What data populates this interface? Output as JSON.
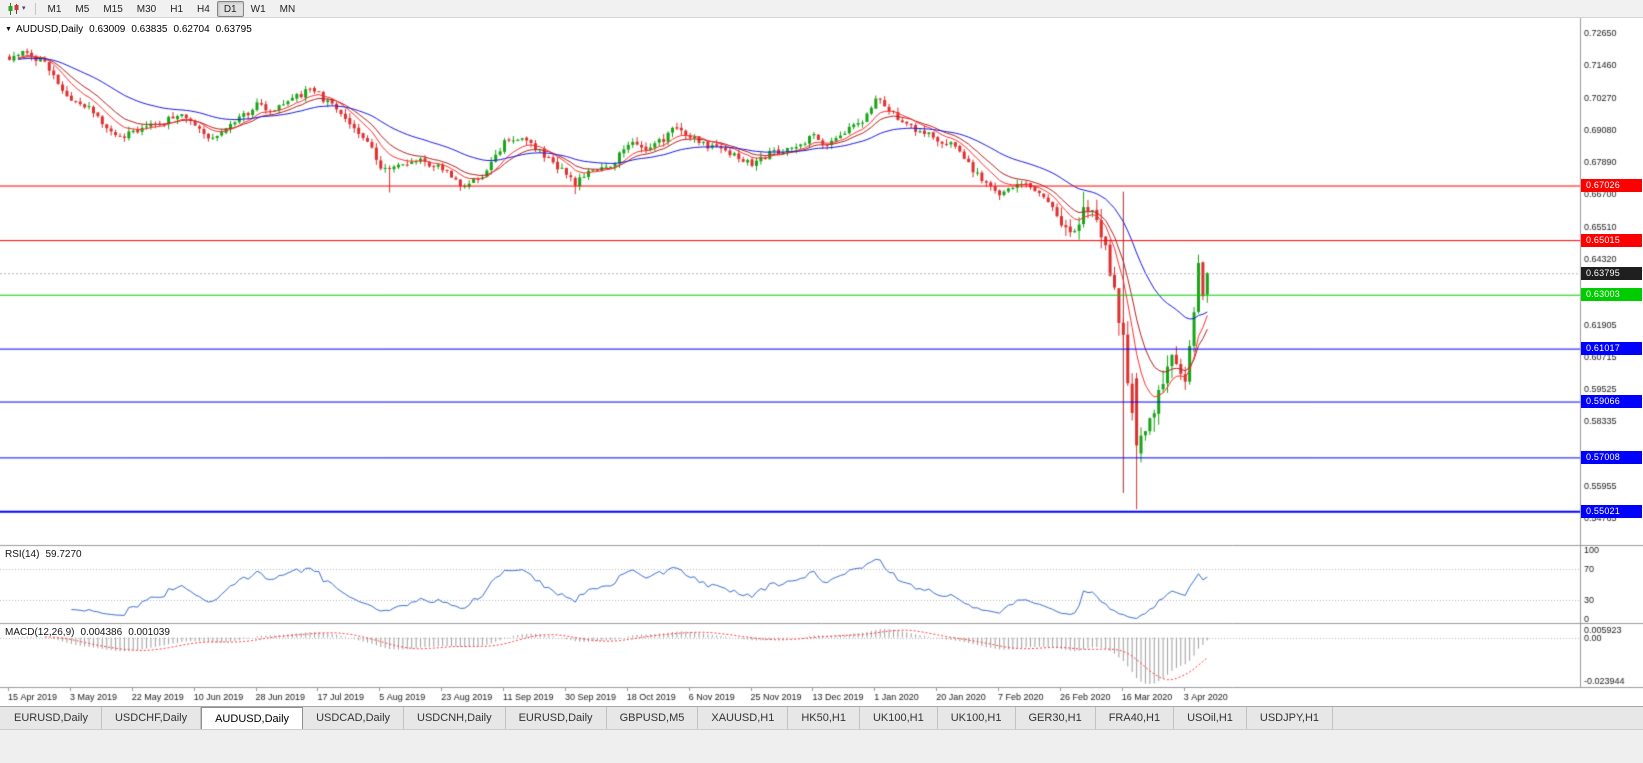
{
  "toolbar": {
    "chart_type_icon": "candlestick-chart-icon",
    "timeframes": [
      {
        "label": "M1",
        "active": false
      },
      {
        "label": "M5",
        "active": false
      },
      {
        "label": "M15",
        "active": false
      },
      {
        "label": "M30",
        "active": false
      },
      {
        "label": "H1",
        "active": false
      },
      {
        "label": "H4",
        "active": false
      },
      {
        "label": "D1",
        "active": true
      },
      {
        "label": "W1",
        "active": false
      },
      {
        "label": "MN",
        "active": false
      }
    ]
  },
  "header": {
    "symbol": "AUDUSD,Daily",
    "open": "0.63009",
    "high": "0.63835",
    "low": "0.62704",
    "close": "0.63795"
  },
  "tabs": [
    {
      "label": "EURUSD,Daily",
      "active": false
    },
    {
      "label": "USDCHF,Daily",
      "active": false
    },
    {
      "label": "AUDUSD,Daily",
      "active": true
    },
    {
      "label": "USDCAD,Daily",
      "active": false
    },
    {
      "label": "USDCNH,Daily",
      "active": false
    },
    {
      "label": "EURUSD,Daily",
      "active": false
    },
    {
      "label": "GBPUSD,M5",
      "active": false
    },
    {
      "label": "XAUUSD,H1",
      "active": false
    },
    {
      "label": "HK50,H1",
      "active": false
    },
    {
      "label": "UK100,H1",
      "active": false
    },
    {
      "label": "UK100,H1",
      "active": false
    },
    {
      "label": "GER30,H1",
      "active": false
    },
    {
      "label": "FRA40,H1",
      "active": false
    },
    {
      "label": "USOil,H1",
      "active": false
    },
    {
      "label": "USDJPY,H1",
      "active": false
    }
  ],
  "chart_data": {
    "type": "candlestick",
    "symbol": "AUDUSD",
    "timeframe": "Daily",
    "num_candles": 272,
    "colors": {
      "up": "#18a418",
      "down": "#dd3030",
      "ma_blue": "#1a1ae0",
      "ma_red_fast": "#ff3030",
      "ma_red_slow": "#b22222",
      "rsi_line": "#3c6fd0",
      "macd_bars": "#9e9e9e",
      "macd_signal": "#ff4040",
      "bid_line": "#b8b8b8"
    },
    "price_axis": {
      "y_top_price": 0.732,
      "y_bottom_price": 0.5378,
      "ticks": [
        "0.72650",
        "0.71460",
        "0.70270",
        "0.69080",
        "0.67890",
        "0.66700",
        "0.65510",
        "0.64320",
        "0.61905",
        "0.60715",
        "0.59525",
        "0.58335",
        "0.57145",
        "0.55955",
        "0.54765"
      ]
    },
    "date_axis": {
      "candles_per_label": 14,
      "labels": [
        "15 Apr 2019",
        "3 May 2019",
        "22 May 2019",
        "10 Jun 2019",
        "28 Jun 2019",
        "17 Jul 2019",
        "5 Aug 2019",
        "23 Aug 2019",
        "11 Sep 2019",
        "30 Sep 2019",
        "18 Oct 2019",
        "6 Nov 2019",
        "25 Nov 2019",
        "13 Dec 2019",
        "1 Jan 2020",
        "20 Jan 2020",
        "7 Feb 2020",
        "26 Feb 2020",
        "16 Mar 2020",
        "3 Apr 2020"
      ]
    },
    "path_anchors": [
      [
        0,
        0.7175
      ],
      [
        4,
        0.7192
      ],
      [
        8,
        0.715
      ],
      [
        14,
        0.7005
      ],
      [
        18,
        0.6992
      ],
      [
        24,
        0.688
      ],
      [
        28,
        0.6898
      ],
      [
        33,
        0.6925
      ],
      [
        38,
        0.6962
      ],
      [
        42,
        0.6935
      ],
      [
        46,
        0.6872
      ],
      [
        50,
        0.692
      ],
      [
        56,
        0.7
      ],
      [
        60,
        0.6978
      ],
      [
        64,
        0.7028
      ],
      [
        68,
        0.7052
      ],
      [
        70,
        0.7038
      ],
      [
        74,
        0.6978
      ],
      [
        78,
        0.6905
      ],
      [
        82,
        0.6848
      ],
      [
        84,
        0.6762
      ],
      [
        86,
        0.6758
      ],
      [
        90,
        0.6788
      ],
      [
        94,
        0.6792
      ],
      [
        98,
        0.6762
      ],
      [
        101,
        0.6722
      ],
      [
        103,
        0.6692
      ],
      [
        107,
        0.6742
      ],
      [
        112,
        0.6862
      ],
      [
        116,
        0.6882
      ],
      [
        120,
        0.6832
      ],
      [
        124,
        0.6772
      ],
      [
        126,
        0.6752
      ],
      [
        128,
        0.6708
      ],
      [
        132,
        0.6762
      ],
      [
        136,
        0.6772
      ],
      [
        140,
        0.686
      ],
      [
        144,
        0.6842
      ],
      [
        148,
        0.6872
      ],
      [
        151,
        0.692
      ],
      [
        154,
        0.6882
      ],
      [
        158,
        0.6848
      ],
      [
        162,
        0.6832
      ],
      [
        166,
        0.6792
      ],
      [
        168,
        0.6778
      ],
      [
        172,
        0.682
      ],
      [
        176,
        0.6836
      ],
      [
        180,
        0.6862
      ],
      [
        182,
        0.6886
      ],
      [
        185,
        0.6856
      ],
      [
        189,
        0.6902
      ],
      [
        193,
        0.6946
      ],
      [
        196,
        0.702
      ],
      [
        199,
        0.6986
      ],
      [
        203,
        0.6922
      ],
      [
        207,
        0.6902
      ],
      [
        210,
        0.6872
      ],
      [
        214,
        0.6846
      ],
      [
        218,
        0.6762
      ],
      [
        221,
        0.6702
      ],
      [
        224,
        0.6672
      ],
      [
        228,
        0.6716
      ],
      [
        232,
        0.6692
      ],
      [
        236,
        0.6622
      ],
      [
        238,
        0.6562
      ],
      [
        241,
        0.6532
      ],
      [
        243,
        0.6612
      ],
      [
        246,
        0.6582
      ],
      [
        248,
        0.6452
      ],
      [
        250,
        0.6302
      ],
      [
        252,
        0.6122
      ],
      [
        253,
        0.6002
      ],
      [
        255,
        0.5745
      ],
      [
        257,
        0.5802
      ],
      [
        259,
        0.5882
      ],
      [
        261,
        0.5962
      ],
      [
        263,
        0.6072
      ],
      [
        265,
        0.6002
      ],
      [
        266,
        0.5992
      ],
      [
        267,
        0.6102
      ],
      [
        268,
        0.6232
      ],
      [
        269,
        0.642
      ],
      [
        270,
        0.6302
      ],
      [
        271,
        0.63795
      ]
    ],
    "candle_overrides": {
      "86": {
        "l": 0.6677
      },
      "128": {
        "l": 0.6671
      },
      "243": {
        "h": 0.668
      },
      "255": {
        "o": 0.5992,
        "h": 0.6012,
        "l": 0.551,
        "c": 0.5745
      },
      "269": {
        "h": 0.6448
      },
      "271": {
        "o": 0.63009,
        "h": 0.63835,
        "l": 0.62704,
        "c": 0.63795
      }
    },
    "volatility_windows": [
      {
        "from": 238,
        "to": 245,
        "mult": 1.7
      },
      {
        "from": 246,
        "to": 263,
        "mult": 3.0
      },
      {
        "from": 264,
        "to": 268,
        "mult": 1.7
      }
    ],
    "horizontal_lines": [
      {
        "price": 0.67026,
        "label": "0.67026",
        "color": "#ff0000",
        "width": 1
      },
      {
        "price": 0.65015,
        "label": "0.65015",
        "color": "#ff0000",
        "width": 1
      },
      {
        "price": 0.63003,
        "label": "0.63003",
        "color": "#00cc00",
        "width": 1
      },
      {
        "price": 0.61017,
        "label": "0.61017",
        "color": "#0000ff",
        "width": 1
      },
      {
        "price": 0.59066,
        "label": "0.59066",
        "color": "#0000ff",
        "width": 1
      },
      {
        "price": 0.57008,
        "label": "0.57008",
        "color": "#0000ff",
        "width": 1
      },
      {
        "price": 0.55021,
        "label": "0.55021",
        "color": "#0000ff",
        "width": 2
      }
    ],
    "current_price": {
      "value": "0.63795",
      "price": 0.63795,
      "flag_color": "#1f1f1f"
    },
    "annotations": [
      {
        "type": "vline_segment",
        "index": 252,
        "from": 0.668,
        "to": 0.557,
        "color": "#a03030"
      }
    ],
    "moving_averages": [
      {
        "period": 13,
        "type": "ema",
        "color": "#b22222",
        "width": 1
      },
      {
        "period": 8,
        "type": "ema",
        "color": "#ff3030",
        "width": 1
      },
      {
        "period": 34,
        "type": "ema",
        "color": "#1a1ae0",
        "width": 1
      }
    ],
    "indicators": {
      "rsi": {
        "label": "RSI(14)",
        "value": "59.7270",
        "period": 14,
        "levels": [
          "100",
          "70",
          "30",
          "0"
        ],
        "level_values": [
          100,
          70,
          30,
          0
        ],
        "dotted_levels": [
          70,
          30
        ]
      },
      "macd": {
        "label": "MACD(12,26,9)",
        "main_value": "0.004386",
        "signal_value": "0.001039",
        "fast": 12,
        "slow": 26,
        "signal": 9,
        "axis_labels": [
          "0.005923",
          "0.00",
          "-0.023944"
        ]
      }
    }
  }
}
